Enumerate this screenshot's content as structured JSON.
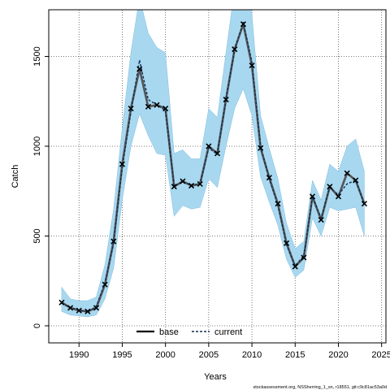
{
  "chart_data": {
    "type": "line",
    "xlabel": "Years",
    "ylabel": "Catch",
    "xlim": [
      1986.5,
      2025.5
    ],
    "ylim": [
      -95,
      1760
    ],
    "xticks": [
      1990,
      1995,
      2000,
      2005,
      2010,
      2015,
      2020,
      2025
    ],
    "yticks": [
      0,
      500,
      1000,
      1500
    ],
    "grid": true,
    "legend_position": "bottom-center",
    "observed_marker": "x",
    "x": [
      1988,
      1989,
      1990,
      1991,
      1992,
      1993,
      1994,
      1995,
      1996,
      1997,
      1998,
      1999,
      2000,
      2001,
      2002,
      2003,
      2004,
      2005,
      2006,
      2007,
      2008,
      2009,
      2010,
      2011,
      2012,
      2013,
      2014,
      2015,
      2016,
      2017,
      2018,
      2019,
      2020,
      2021,
      2022,
      2023
    ],
    "observed": [
      130,
      100,
      85,
      80,
      100,
      230,
      470,
      900,
      1210,
      1430,
      1220,
      1230,
      1210,
      775,
      805,
      780,
      790,
      1000,
      960,
      1260,
      1540,
      1680,
      1450,
      990,
      825,
      680,
      460,
      330,
      380,
      720,
      590,
      775,
      720,
      850,
      810,
      680
    ],
    "series": [
      {
        "name": "base",
        "color": "#000000",
        "values": [
          130,
          100,
          85,
          80,
          100,
          230,
          470,
          900,
          1210,
          1430,
          1220,
          1230,
          1210,
          775,
          805,
          780,
          790,
          1000,
          960,
          1260,
          1540,
          1680,
          1450,
          990,
          825,
          680,
          460,
          330,
          380,
          720,
          590,
          775,
          720,
          850,
          810,
          680
        ]
      },
      {
        "name": "current",
        "color": "#1a4a7a",
        "values": [
          125,
          102,
          88,
          78,
          108,
          240,
          460,
          880,
          1190,
          1480,
          1260,
          1230,
          1200,
          780,
          800,
          785,
          790,
          990,
          955,
          1265,
          1540,
          1690,
          1470,
          1000,
          820,
          670,
          450,
          335,
          390,
          720,
          600,
          770,
          730,
          790,
          810,
          680
        ]
      }
    ],
    "band": {
      "color": "#a8d8f0",
      "lower": [
        80,
        60,
        55,
        50,
        60,
        150,
        320,
        700,
        1000,
        1180,
        1060,
        960,
        950,
        610,
        670,
        650,
        660,
        820,
        770,
        1000,
        1210,
        1320,
        1170,
        830,
        690,
        560,
        370,
        270,
        310,
        600,
        500,
        660,
        640,
        650,
        660,
        500
      ],
      "upper": [
        215,
        150,
        140,
        140,
        160,
        340,
        650,
        1100,
        1520,
        1830,
        1630,
        1550,
        1520,
        960,
        980,
        930,
        930,
        1210,
        1160,
        1520,
        1880,
        2050,
        1730,
        1170,
        990,
        820,
        570,
        430,
        470,
        810,
        700,
        900,
        860,
        1000,
        1040,
        860
      ]
    }
  },
  "footer": "stockassessment.org, NSSherring_1_sn, r18551, git:c9c81ac53a0d"
}
